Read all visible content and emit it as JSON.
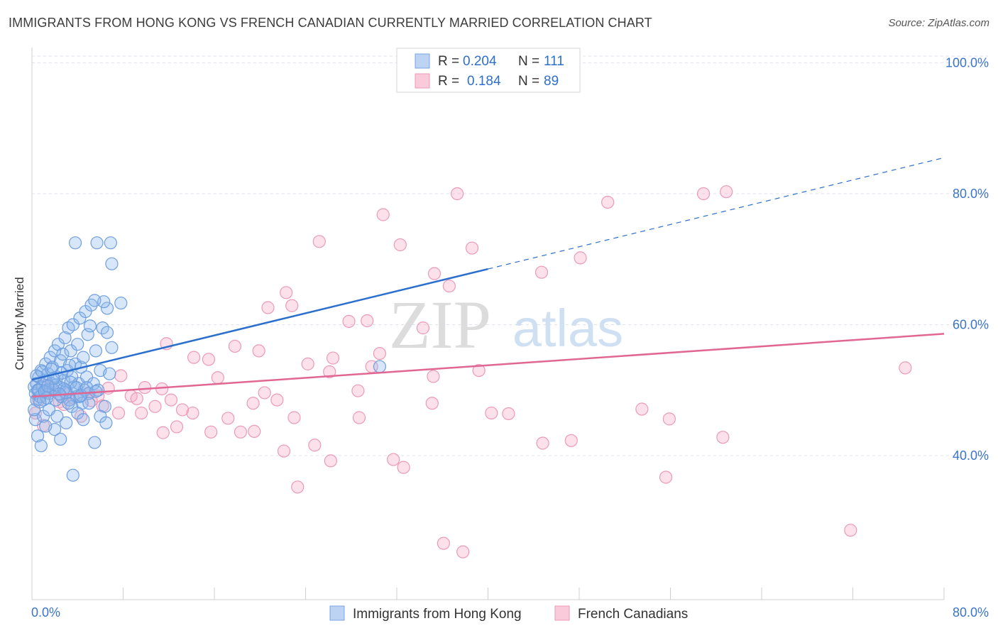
{
  "title": "IMMIGRANTS FROM HONG KONG VS FRENCH CANADIAN CURRENTLY MARRIED CORRELATION CHART",
  "source": "Source: ZipAtlas.com",
  "watermark": {
    "zip": "ZIP",
    "atlas": "atlas"
  },
  "colors": {
    "blue": "#5b93e0",
    "blue_line": "#2b6fce",
    "pink": "#ee88aa",
    "pink_line": "#e06792",
    "axis_label": "#3b74c9",
    "grid": "#dde3ec"
  },
  "legend": {
    "rows": [
      {
        "r_label": "R =",
        "r_value": "0.204",
        "n_label": "N =",
        "n_value": "111"
      },
      {
        "r_label": "R =",
        "r_value": "0.184",
        "n_label": "N =",
        "n_value": "89"
      }
    ]
  },
  "bottom_legend": [
    "Immigrants from Hong Kong",
    "French Canadians"
  ],
  "chart_data": {
    "type": "scatter",
    "title": "IMMIGRANTS FROM HONG KONG VS FRENCH CANADIAN CURRENTLY MARRIED CORRELATION CHART",
    "xlabel": "",
    "ylabel": "Currently Married",
    "xlim": [
      0,
      80
    ],
    "ylim": [
      18,
      102
    ],
    "x_tick_labels": [
      "0.0%",
      "80.0%"
    ],
    "y_ticks": [
      40,
      60,
      80,
      100
    ],
    "y_tick_labels": [
      "40.0%",
      "60.0%",
      "80.0%",
      "100.0%"
    ],
    "grid": true,
    "legend_position": "top-center",
    "series": [
      {
        "name": "Immigrants from Hong Kong",
        "color": "#5b93e0",
        "R": 0.204,
        "N": 111,
        "trend": {
          "x": [
            0,
            40
          ],
          "y": [
            51.6,
            68.5
          ],
          "dashed_extension": {
            "x": [
              40,
              80
            ],
            "y": [
              68.5,
              85.5
            ]
          }
        },
        "points": [
          [
            0.2,
            50.5
          ],
          [
            0.3,
            49.5
          ],
          [
            0.4,
            51
          ],
          [
            0.4,
            48.5
          ],
          [
            0.5,
            50
          ],
          [
            0.6,
            52
          ],
          [
            0.7,
            49
          ],
          [
            0.8,
            53
          ],
          [
            0.9,
            50.5
          ],
          [
            1.0,
            48.5
          ],
          [
            1.1,
            51.5
          ],
          [
            1.2,
            54
          ],
          [
            1.3,
            50
          ],
          [
            1.4,
            52.5
          ],
          [
            1.5,
            49.5
          ],
          [
            1.6,
            55
          ],
          [
            1.7,
            51
          ],
          [
            1.8,
            53.5
          ],
          [
            1.9,
            50
          ],
          [
            2.0,
            56
          ],
          [
            2.1,
            48.5
          ],
          [
            2.2,
            52
          ],
          [
            2.3,
            57
          ],
          [
            2.4,
            50.5
          ],
          [
            2.5,
            54.5
          ],
          [
            2.6,
            49
          ],
          [
            2.7,
            55.5
          ],
          [
            2.8,
            51.5
          ],
          [
            2.9,
            58
          ],
          [
            3.0,
            50
          ],
          [
            3.1,
            53
          ],
          [
            3.2,
            59.5
          ],
          [
            3.3,
            48.5
          ],
          [
            3.4,
            56
          ],
          [
            3.5,
            52
          ],
          [
            3.6,
            60
          ],
          [
            3.7,
            50.5
          ],
          [
            3.8,
            54
          ],
          [
            3.9,
            49
          ],
          [
            4.0,
            57
          ],
          [
            4.1,
            51
          ],
          [
            4.2,
            61
          ],
          [
            4.3,
            53.5
          ],
          [
            4.4,
            48
          ],
          [
            4.5,
            55
          ],
          [
            4.6,
            50
          ],
          [
            4.7,
            62
          ],
          [
            4.8,
            52
          ],
          [
            4.9,
            58.5
          ],
          [
            5.0,
            49.5
          ],
          [
            5.2,
            63
          ],
          [
            5.4,
            51
          ],
          [
            5.6,
            56
          ],
          [
            5.8,
            50
          ],
          [
            6.0,
            53
          ],
          [
            6.2,
            59.5
          ],
          [
            6.4,
            47.5
          ],
          [
            6.6,
            62.5
          ],
          [
            6.8,
            52.5
          ],
          [
            7.0,
            56.5
          ],
          [
            0.3,
            45.5
          ],
          [
            0.5,
            43
          ],
          [
            0.8,
            41.5
          ],
          [
            1.0,
            46
          ],
          [
            1.5,
            47
          ],
          [
            2.0,
            44
          ],
          [
            2.5,
            42.5
          ],
          [
            3.0,
            45
          ],
          [
            3.5,
            47.5
          ],
          [
            4.0,
            46.5
          ],
          [
            4.5,
            45.5
          ],
          [
            5.0,
            48
          ],
          [
            5.5,
            42
          ],
          [
            6.0,
            46
          ],
          [
            6.5,
            45
          ],
          [
            0.2,
            47
          ],
          [
            1.2,
            44.5
          ],
          [
            2.2,
            46
          ],
          [
            3.2,
            48
          ],
          [
            4.2,
            49
          ],
          [
            3.8,
            72.5
          ],
          [
            5.7,
            72.5
          ],
          [
            6.9,
            72.5
          ],
          [
            7.0,
            69.3
          ],
          [
            7.8,
            63.3
          ],
          [
            6.3,
            63.5
          ],
          [
            5.1,
            59.8
          ],
          [
            5.5,
            63.7
          ],
          [
            6.6,
            58.8
          ],
          [
            3.6,
            37
          ],
          [
            0.6,
            50
          ],
          [
            0.9,
            52.8
          ],
          [
            1.3,
            48.8
          ],
          [
            1.7,
            53.2
          ],
          [
            2.1,
            50.8
          ],
          [
            2.6,
            52.6
          ],
          [
            3.0,
            49.6
          ],
          [
            3.4,
            51.2
          ],
          [
            3.9,
            50.4
          ],
          [
            4.3,
            49.2
          ],
          [
            30.5,
            53.6
          ],
          [
            0.4,
            52.2
          ],
          [
            1.1,
            49.8
          ],
          [
            1.9,
            51.8
          ],
          [
            2.8,
            50.2
          ],
          [
            0.7,
            48.2
          ],
          [
            1.4,
            50.6
          ],
          [
            2.4,
            49.4
          ],
          [
            3.3,
            53.8
          ],
          [
            4.8,
            50.4
          ],
          [
            5.6,
            49.8
          ]
        ]
      },
      {
        "name": "French Canadians",
        "color": "#ee88aa",
        "R": 0.184,
        "N": 89,
        "trend": {
          "x": [
            0,
            80
          ],
          "y": [
            49.0,
            58.6
          ]
        },
        "points": [
          [
            37.3,
            80
          ],
          [
            50.5,
            78.7
          ],
          [
            58.9,
            80
          ],
          [
            60.9,
            80.3
          ],
          [
            30.8,
            76.8
          ],
          [
            25.2,
            72.7
          ],
          [
            32.3,
            72.2
          ],
          [
            38.6,
            71.7
          ],
          [
            48.1,
            70.2
          ],
          [
            44.7,
            68
          ],
          [
            35.3,
            67.8
          ],
          [
            36.6,
            65.9
          ],
          [
            22.3,
            64.9
          ],
          [
            22.8,
            62.9
          ],
          [
            20.7,
            62.6
          ],
          [
            27.8,
            60.5
          ],
          [
            29.4,
            60.6
          ],
          [
            34.3,
            59.5
          ],
          [
            11.8,
            57.1
          ],
          [
            17.8,
            56.7
          ],
          [
            19.9,
            56
          ],
          [
            30.5,
            55.6
          ],
          [
            15.5,
            54.7
          ],
          [
            14.2,
            55
          ],
          [
            26.4,
            54.9
          ],
          [
            24.2,
            54
          ],
          [
            29.8,
            53.6
          ],
          [
            39.2,
            53
          ],
          [
            26.1,
            52.8
          ],
          [
            35.2,
            52.1
          ],
          [
            16.3,
            51.9
          ],
          [
            7.8,
            52.2
          ],
          [
            9.9,
            50.4
          ],
          [
            11.4,
            50.2
          ],
          [
            6.7,
            50.3
          ],
          [
            4.9,
            49.5
          ],
          [
            20.4,
            49.6
          ],
          [
            28.6,
            49.9
          ],
          [
            5.8,
            49.1
          ],
          [
            8.7,
            49.1
          ],
          [
            12.2,
            48.5
          ],
          [
            9.2,
            48.7
          ],
          [
            21.5,
            48.5
          ],
          [
            19.4,
            48
          ],
          [
            35.1,
            48
          ],
          [
            6.2,
            47.6
          ],
          [
            10.8,
            47.5
          ],
          [
            9.6,
            46.5
          ],
          [
            14.1,
            46.5
          ],
          [
            13.2,
            47
          ],
          [
            7.6,
            46.5
          ],
          [
            4.3,
            46
          ],
          [
            17.2,
            45.7
          ],
          [
            23,
            45.8
          ],
          [
            28.7,
            45.8
          ],
          [
            40.3,
            46.5
          ],
          [
            41.8,
            46.4
          ],
          [
            53.5,
            47.1
          ],
          [
            55.9,
            45.6
          ],
          [
            12.7,
            44.4
          ],
          [
            11.5,
            43.5
          ],
          [
            15.7,
            43.6
          ],
          [
            18.3,
            43.6
          ],
          [
            19.5,
            43.7
          ],
          [
            44.8,
            41.9
          ],
          [
            47.3,
            42.3
          ],
          [
            60.6,
            42.8
          ],
          [
            24.8,
            41.6
          ],
          [
            22.1,
            40.7
          ],
          [
            26.2,
            39.2
          ],
          [
            31.7,
            39.4
          ],
          [
            32.6,
            38.2
          ],
          [
            55.6,
            36.7
          ],
          [
            23.3,
            35.2
          ],
          [
            36.1,
            26.6
          ],
          [
            37.8,
            25.3
          ],
          [
            71.8,
            28.6
          ],
          [
            76.6,
            53.4
          ],
          [
            2.4,
            48.2
          ],
          [
            1.2,
            49.6
          ],
          [
            0.6,
            48.5
          ],
          [
            1.8,
            50.3
          ],
          [
            3.0,
            49.4
          ],
          [
            1.0,
            44.6
          ],
          [
            0.3,
            46.5
          ],
          [
            3.6,
            48.8
          ],
          [
            5.2,
            48.4
          ],
          [
            2.8,
            47.8
          ],
          [
            0.9,
            50.8
          ]
        ]
      }
    ]
  }
}
